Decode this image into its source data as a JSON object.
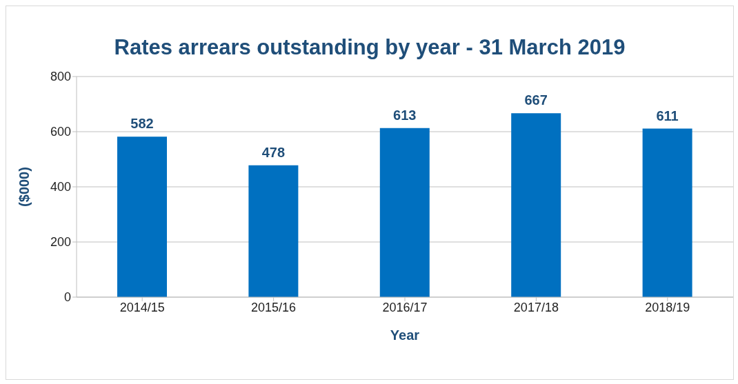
{
  "chart_data": {
    "type": "bar",
    "title": "Rates arrears outstanding by year - 31 March 2019",
    "xlabel": "Year",
    "ylabel": "($000)",
    "categories": [
      "2014/15",
      "2015/16",
      "2016/17",
      "2017/18",
      "2018/19"
    ],
    "values": [
      582,
      478,
      613,
      667,
      611
    ],
    "color": "#0070c0",
    "ylim": [
      0,
      800
    ],
    "yticks": [
      0,
      200,
      400,
      600,
      800
    ],
    "grid": "y",
    "data_labels": true,
    "legend": false
  }
}
